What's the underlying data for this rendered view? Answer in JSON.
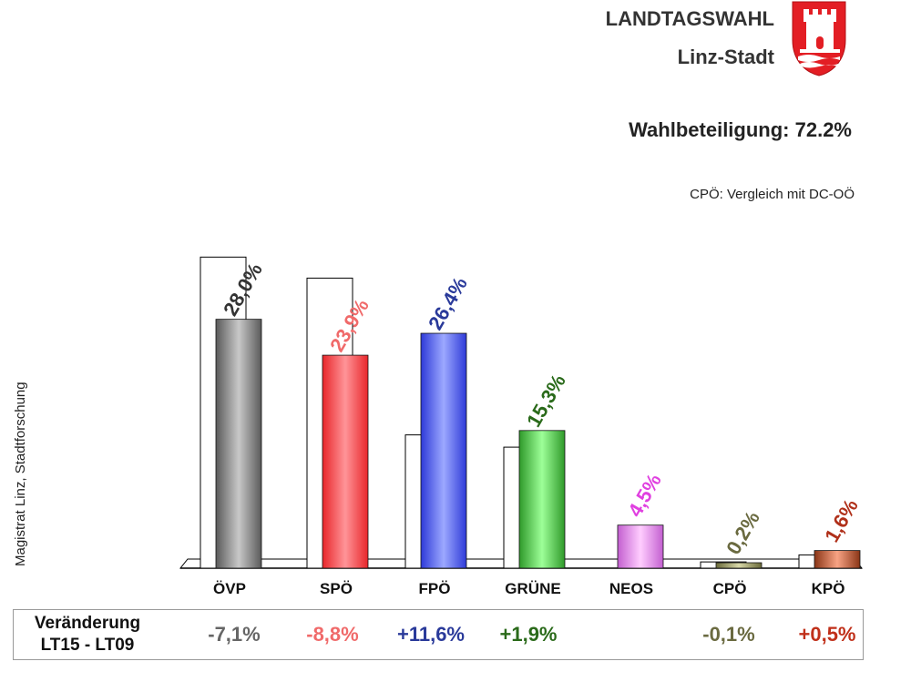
{
  "header": {
    "title": "LANDTAGSWAHL",
    "subtitle": "Linz-Stadt",
    "turnout": "Wahlbeteiligung: 72.2%",
    "note": "CPÖ: Vergleich mit DC-OÖ",
    "source": "Magistrat Linz, Stadtforschung"
  },
  "colors": {
    "OVP": "#5a5a5a",
    "SPO": "#e8262a",
    "FPO": "#2e3ad8",
    "GRUENE": "#2f9a2a",
    "NEOS": "#c35fd0",
    "CPO": "#6a6a3a",
    "KPO": "#8a3516"
  },
  "chart_data": {
    "type": "bar",
    "categories": [
      "ÖVP",
      "SPÖ",
      "FPÖ",
      "GRÜNE",
      "NEOS",
      "CPÖ",
      "KPÖ"
    ],
    "series": [
      {
        "name": "LT15",
        "values": [
          28.0,
          23.9,
          26.4,
          15.3,
          4.5,
          0.2,
          1.6
        ]
      },
      {
        "name": "LT09",
        "values": [
          35.1,
          32.7,
          14.8,
          13.4,
          null,
          0.3,
          1.1
        ]
      }
    ],
    "data_labels": [
      "28,0%",
      "23,9%",
      "26,4%",
      "15,3%",
      "4,5%",
      "0,2%",
      "1,6%"
    ],
    "label_colors": [
      "#333333",
      "#f06a6a",
      "#2a3a9a",
      "#2a6a1a",
      "#e040e0",
      "#6a6a40",
      "#b0301a"
    ],
    "ylim": [
      0,
      36
    ],
    "grid": false,
    "legend": "none"
  },
  "changes": {
    "label_line1": "Veränderung",
    "label_line2": "LT15 - LT09",
    "values": [
      "-7,1%",
      "-8,8%",
      "+11,6%",
      "+1,9%",
      "",
      "-0,1%",
      "+0,5%"
    ],
    "colors": [
      "#666666",
      "#f06a6a",
      "#2a3a9a",
      "#2a6a1a",
      "#e040e0",
      "#6a6a40",
      "#c0301a"
    ]
  }
}
